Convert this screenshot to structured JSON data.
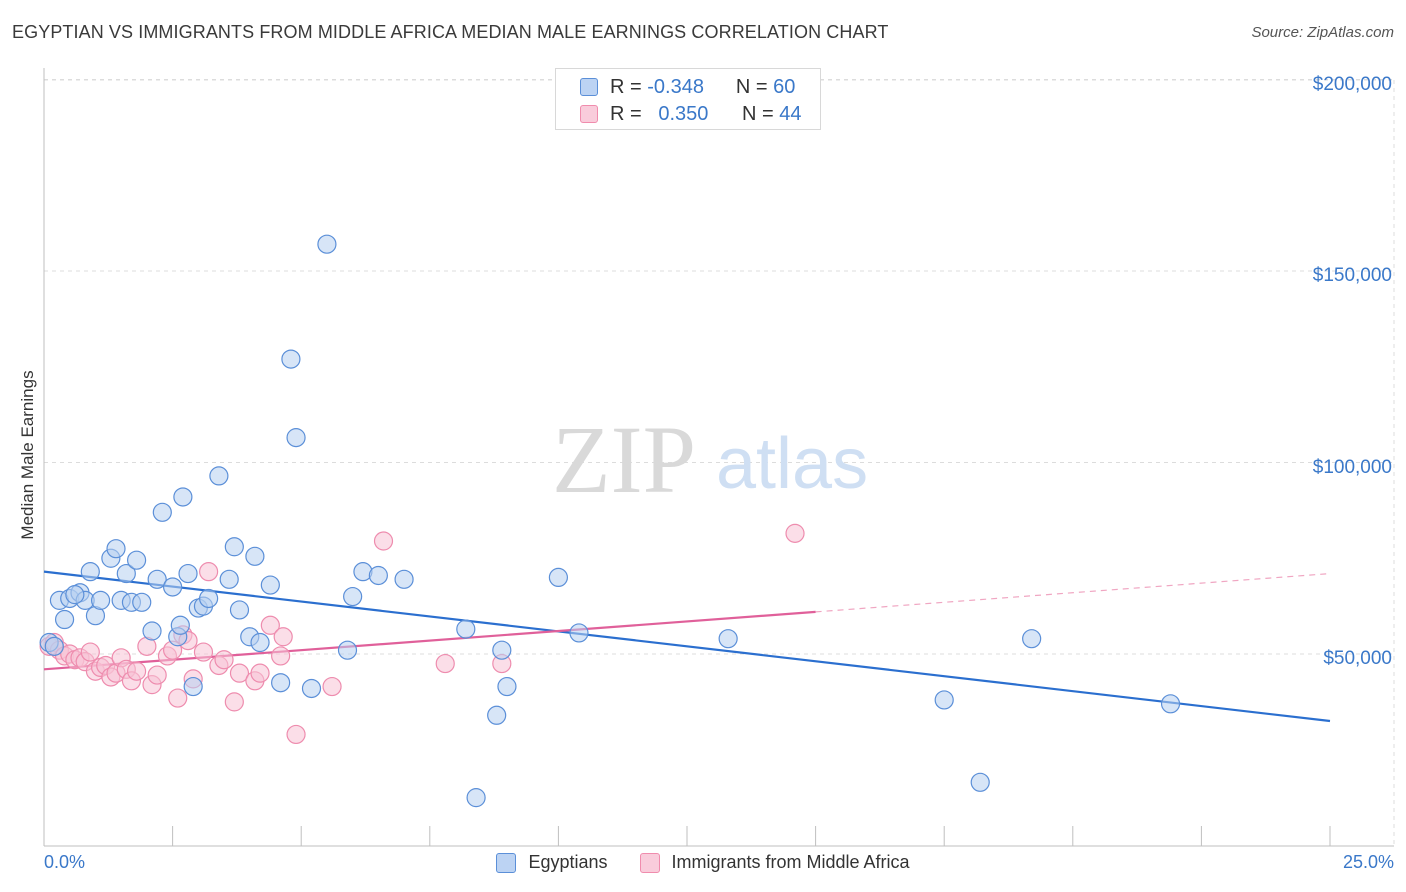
{
  "title": "EGYPTIAN VS IMMIGRANTS FROM MIDDLE AFRICA MEDIAN MALE EARNINGS CORRELATION CHART",
  "source": "Source: ZipAtlas.com",
  "watermark": {
    "zip": "ZIP",
    "atlas": "atlas"
  },
  "legend": {
    "rows": [
      {
        "r_label": "R =",
        "r_value": "-0.348",
        "n_label": "N =",
        "n_value": "60"
      },
      {
        "r_label": "R =",
        "r_value": "0.350",
        "n_label": "N =",
        "n_value": "44"
      }
    ]
  },
  "chart_data": {
    "type": "scatter",
    "title": "EGYPTIAN VS IMMIGRANTS FROM MIDDLE AFRICA MEDIAN MALE EARNINGS CORRELATION CHART",
    "xlabel": "",
    "ylabel": "Median Male Earnings",
    "xlim": [
      0,
      25
    ],
    "ylim": [
      0,
      210000
    ],
    "x_tick_labels": [
      "0.0%",
      "25.0%"
    ],
    "y_ticks": [
      50000,
      100000,
      150000,
      200000
    ],
    "y_tick_labels": [
      "$50,000",
      "$100,000",
      "$150,000",
      "$200,000"
    ],
    "grid": true,
    "legend_position": "top-center and bottom",
    "colors": {
      "egyptians": "#5b8fd8",
      "middle_africa": "#f08cad",
      "egyptians_line": "#2b6fcf",
      "middle_africa_line": "#e0609a"
    },
    "series": [
      {
        "name": "Egyptians",
        "r": -0.348,
        "n": 60,
        "trend": {
          "x": [
            0,
            25
          ],
          "y": [
            71500,
            32500
          ]
        },
        "points": [
          [
            0.1,
            53000
          ],
          [
            0.3,
            64000
          ],
          [
            0.4,
            59000
          ],
          [
            0.5,
            64500
          ],
          [
            0.7,
            66000
          ],
          [
            0.8,
            64000
          ],
          [
            0.9,
            71500
          ],
          [
            1.0,
            60000
          ],
          [
            1.1,
            64000
          ],
          [
            1.3,
            75000
          ],
          [
            1.4,
            77500
          ],
          [
            1.5,
            64000
          ],
          [
            1.6,
            71000
          ],
          [
            1.7,
            63500
          ],
          [
            1.8,
            74500
          ],
          [
            1.9,
            63500
          ],
          [
            2.1,
            56000
          ],
          [
            2.2,
            69500
          ],
          [
            2.3,
            87000
          ],
          [
            2.5,
            67500
          ],
          [
            2.6,
            54500
          ],
          [
            2.65,
            57500
          ],
          [
            2.7,
            91000
          ],
          [
            2.8,
            71000
          ],
          [
            2.9,
            41500
          ],
          [
            3.0,
            62000
          ],
          [
            3.1,
            62500
          ],
          [
            3.2,
            64500
          ],
          [
            3.4,
            96500
          ],
          [
            3.6,
            69500
          ],
          [
            3.7,
            78000
          ],
          [
            3.8,
            61500
          ],
          [
            4.0,
            54500
          ],
          [
            4.1,
            75500
          ],
          [
            4.2,
            53000
          ],
          [
            4.4,
            68000
          ],
          [
            4.6,
            42500
          ],
          [
            4.8,
            127000
          ],
          [
            4.9,
            106500
          ],
          [
            5.2,
            41000
          ],
          [
            5.5,
            157000
          ],
          [
            5.9,
            51000
          ],
          [
            6.0,
            65000
          ],
          [
            6.2,
            71500
          ],
          [
            6.5,
            70500
          ],
          [
            7.0,
            69500
          ],
          [
            8.2,
            56500
          ],
          [
            8.4,
            12500
          ],
          [
            8.8,
            34000
          ],
          [
            8.9,
            51000
          ],
          [
            9.0,
            41500
          ],
          [
            10.0,
            70000
          ],
          [
            10.4,
            55500
          ],
          [
            13.3,
            54000
          ],
          [
            17.5,
            38000
          ],
          [
            18.2,
            16500
          ],
          [
            19.2,
            54000
          ],
          [
            21.9,
            37000
          ],
          [
            0.2,
            52000
          ],
          [
            0.6,
            65500
          ]
        ]
      },
      {
        "name": "Immigrants from Middle Africa",
        "r": 0.35,
        "n": 44,
        "trend": {
          "x": [
            0,
            15
          ],
          "y": [
            46000,
            61000
          ]
        },
        "trend_dashed": {
          "x": [
            15,
            25
          ],
          "y": [
            61000,
            71000
          ]
        },
        "points": [
          [
            0.1,
            52000
          ],
          [
            0.2,
            53000
          ],
          [
            0.3,
            51000
          ],
          [
            0.4,
            49500
          ],
          [
            0.5,
            50000
          ],
          [
            0.6,
            48500
          ],
          [
            0.7,
            49000
          ],
          [
            0.8,
            48000
          ],
          [
            0.9,
            50500
          ],
          [
            1.0,
            45500
          ],
          [
            1.1,
            46500
          ],
          [
            1.2,
            47000
          ],
          [
            1.3,
            44000
          ],
          [
            1.4,
            45000
          ],
          [
            1.5,
            49000
          ],
          [
            1.6,
            46000
          ],
          [
            1.7,
            43000
          ],
          [
            1.8,
            45500
          ],
          [
            2.0,
            52000
          ],
          [
            2.1,
            42000
          ],
          [
            2.2,
            44500
          ],
          [
            2.4,
            49500
          ],
          [
            2.5,
            51000
          ],
          [
            2.6,
            38500
          ],
          [
            2.7,
            55000
          ],
          [
            2.8,
            53500
          ],
          [
            2.9,
            43500
          ],
          [
            3.1,
            50500
          ],
          [
            3.2,
            71500
          ],
          [
            3.4,
            47000
          ],
          [
            3.5,
            48500
          ],
          [
            3.7,
            37500
          ],
          [
            3.8,
            45000
          ],
          [
            4.1,
            43000
          ],
          [
            4.2,
            45000
          ],
          [
            4.4,
            57500
          ],
          [
            4.6,
            49500
          ],
          [
            4.65,
            54500
          ],
          [
            4.9,
            29000
          ],
          [
            5.6,
            41500
          ],
          [
            6.6,
            79500
          ],
          [
            7.8,
            47500
          ],
          [
            8.9,
            47500
          ],
          [
            14.6,
            81500
          ]
        ]
      }
    ]
  },
  "bottom_legend": {
    "item1": "Egyptians",
    "item2": "Immigrants from Middle Africa"
  }
}
